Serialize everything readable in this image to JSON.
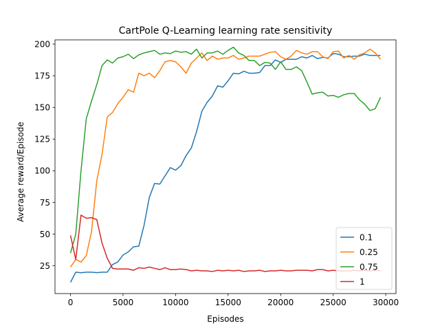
{
  "chart_data": {
    "type": "line",
    "title": "CartPole Q-Learning learning rate sensitivity",
    "xlabel": "Episodes",
    "ylabel": "Average reward/Episode",
    "xlim": [
      -1475,
      30975
    ],
    "ylim": [
      3.1,
      203.3
    ],
    "xticks": [
      0,
      5000,
      10000,
      15000,
      20000,
      25000,
      30000
    ],
    "xtick_labels": [
      "0",
      "5000",
      "10000",
      "15000",
      "20000",
      "25000",
      "30000"
    ],
    "yticks": [
      25,
      50,
      75,
      100,
      125,
      150,
      175,
      200
    ],
    "ytick_labels": [
      "25",
      "50",
      "75",
      "100",
      "125",
      "150",
      "175",
      "200"
    ],
    "grid": false,
    "legend_position": "lower-right",
    "x": [
      0,
      500,
      1000,
      1500,
      2000,
      2500,
      3000,
      3500,
      4000,
      4500,
      5000,
      5500,
      6000,
      6500,
      7000,
      7500,
      8000,
      8500,
      9000,
      9500,
      10000,
      10500,
      11000,
      11500,
      12000,
      12500,
      13000,
      13500,
      14000,
      14500,
      15000,
      15500,
      16000,
      16500,
      17000,
      17500,
      18000,
      18500,
      19000,
      19500,
      20000,
      20500,
      21000,
      21500,
      22000,
      22500,
      23000,
      23500,
      24000,
      24500,
      25000,
      25500,
      26000,
      26500,
      27000,
      27500,
      28000,
      28500,
      29000,
      29500
    ],
    "series": [
      {
        "name": "0.1",
        "color": "#1f77b4",
        "values": [
          12,
          20,
          19.5,
          20,
          20,
          19.6,
          20,
          20,
          26,
          28,
          33.5,
          36,
          40,
          40.5,
          57,
          79,
          90,
          89.5,
          96,
          102.5,
          100.5,
          104,
          112,
          118,
          131,
          147,
          154,
          159,
          167,
          166,
          171,
          177,
          176.5,
          178.5,
          177,
          177,
          177.5,
          183,
          183,
          187.5,
          185.5,
          188,
          188,
          188,
          190,
          189,
          191,
          188.5,
          189.5,
          189,
          192.5,
          192,
          190,
          190,
          190.5,
          190.5,
          192,
          191,
          191,
          191
        ]
      },
      {
        "name": "0.25",
        "color": "#ff7f0e",
        "values": [
          24,
          30,
          28,
          33,
          52,
          92,
          113,
          142.5,
          146,
          153,
          158,
          164,
          162,
          177,
          175,
          177,
          173.5,
          179,
          186,
          187,
          186,
          182,
          177,
          185,
          189,
          193,
          187,
          190.5,
          188,
          189,
          189,
          191,
          188,
          189,
          190.5,
          190.5,
          190.5,
          192,
          193.5,
          194,
          190,
          188,
          190.5,
          195,
          193,
          192,
          194,
          194,
          190,
          188.5,
          194,
          194.5,
          189,
          191,
          188,
          191.5,
          193,
          196,
          193,
          188
        ]
      },
      {
        "name": "0.75",
        "color": "#2ca02c",
        "values": [
          35,
          50,
          100,
          141,
          155,
          168,
          183,
          187.5,
          185,
          189,
          190,
          192,
          188.5,
          191.5,
          193,
          194,
          195,
          192,
          193,
          192.5,
          194.5,
          193.5,
          194,
          192,
          196,
          189,
          193,
          193,
          194.5,
          192,
          195,
          197.5,
          193,
          191,
          187,
          187,
          183,
          185.5,
          185,
          180,
          186,
          180,
          180,
          182,
          179,
          170,
          160.5,
          161.5,
          162,
          159,
          159.5,
          158,
          160,
          161,
          161,
          156,
          152.5,
          147.5,
          149,
          158
        ]
      },
      {
        "name": "1",
        "color": "#d62728",
        "values": [
          49,
          30,
          65,
          62.5,
          63,
          61.5,
          43,
          31,
          23,
          22.5,
          22.5,
          22.5,
          21.5,
          23.5,
          23,
          24,
          23,
          22,
          23.5,
          22,
          22,
          22.5,
          22,
          21,
          21.5,
          21,
          21,
          20.5,
          21.5,
          21,
          21.5,
          21,
          21.5,
          20.5,
          21,
          21,
          21.5,
          20.5,
          21,
          21,
          21.5,
          21,
          21,
          21.5,
          21.5,
          21.5,
          21,
          22,
          22,
          21,
          21.5,
          21,
          21,
          21,
          21.5,
          21,
          21.5,
          21,
          21.5,
          21
        ]
      }
    ]
  }
}
